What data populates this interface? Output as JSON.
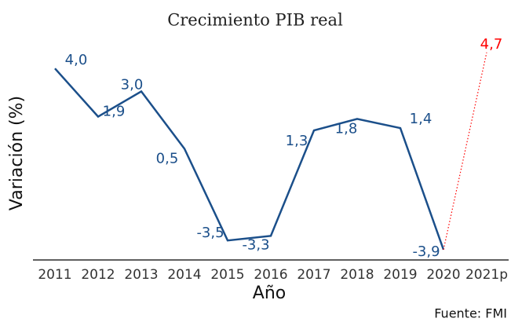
{
  "chart_data": {
    "type": "line",
    "title": "Crecimiento PIB real",
    "x_label": "Año",
    "y_label": "Variación (%)",
    "source": "Fuente: FMI",
    "categories": [
      "2011",
      "2012",
      "2013",
      "2014",
      "2015",
      "2016",
      "2017",
      "2018",
      "2019",
      "2020",
      "2021p"
    ],
    "series": [
      {
        "color": "#1b4f8a",
        "style": "solid",
        "values": [
          4.0,
          1.9,
          3.0,
          0.5,
          -3.5,
          -3.3,
          1.3,
          1.8,
          1.4,
          -3.9,
          null
        ],
        "value_labels": [
          "4,0",
          "1,9",
          "3,0",
          "0,5",
          "-3,5",
          "-3,3",
          "1,3",
          "1,8",
          "1,4",
          "-3,9",
          null
        ]
      },
      {
        "color": "#ff0000",
        "style": "dotted",
        "values": [
          null,
          null,
          null,
          null,
          null,
          null,
          null,
          null,
          null,
          -3.9,
          4.7
        ],
        "value_labels": [
          null,
          null,
          null,
          null,
          null,
          null,
          null,
          null,
          null,
          null,
          "4,7"
        ]
      }
    ],
    "ylim": [
      -4.35,
      5.0
    ]
  }
}
